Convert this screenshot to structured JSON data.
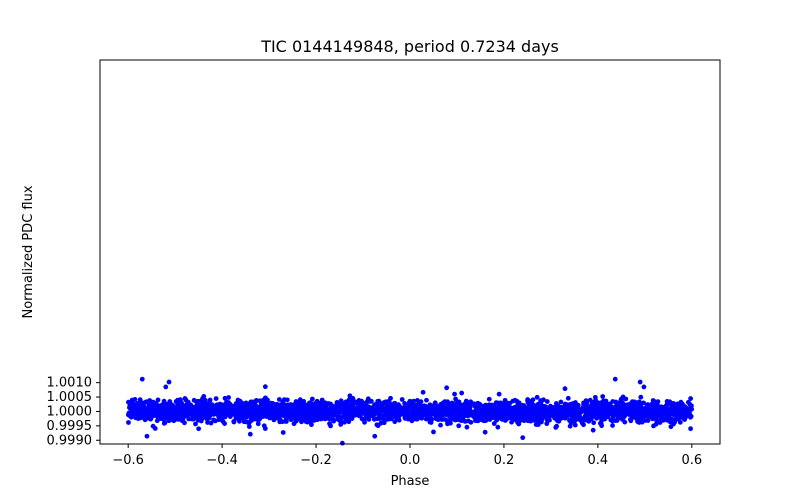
{
  "chart_data": {
    "type": "scatter",
    "title": "TIC 0144149848, period 0.7234 days",
    "xlabel": "Phase",
    "ylabel": "Normalized PDC flux",
    "xlim": [
      -0.66,
      0.66
    ],
    "ylim": [
      0.99887,
      1.0122
    ],
    "xticks": [
      -0.6,
      -0.4,
      -0.2,
      0.0,
      0.2,
      0.4,
      0.6
    ],
    "xtick_labels": [
      "−0.6",
      "−0.4",
      "−0.2",
      "0.0",
      "0.2",
      "0.4",
      "0.6"
    ],
    "yticks": [
      0.999,
      0.9995,
      1.0,
      1.0005,
      1.001
    ],
    "ytick_labels": [
      "0.9990",
      "0.9995",
      "1.0000",
      "1.0005",
      "1.0010"
    ],
    "series": [
      {
        "name": "flux",
        "color": "#0000ff",
        "marker": "circle",
        "x_range": [
          -0.6,
          0.6
        ],
        "center": 1.0,
        "spread": 0.00024,
        "count": 3000,
        "outliers": {
          "x": [
            -0.57,
            -0.513,
            -0.56,
            -0.34,
            -0.308,
            -0.144,
            -0.075,
            0.078,
            0.11,
            0.24,
            0.437,
            0.49,
            0.498,
            -0.52,
            0.39,
            -0.27,
            0.05,
            0.33,
            -0.45,
            0.16
          ],
          "y": [
            1.00112,
            1.00102,
            0.99914,
            0.99921,
            1.00086,
            0.9989,
            0.99914,
            1.00082,
            1.00064,
            0.99909,
            1.00112,
            1.00102,
            1.00085,
            1.00085,
            0.99935,
            0.99927,
            0.99929,
            1.00079,
            0.9994,
            0.99928
          ]
        }
      }
    ]
  }
}
